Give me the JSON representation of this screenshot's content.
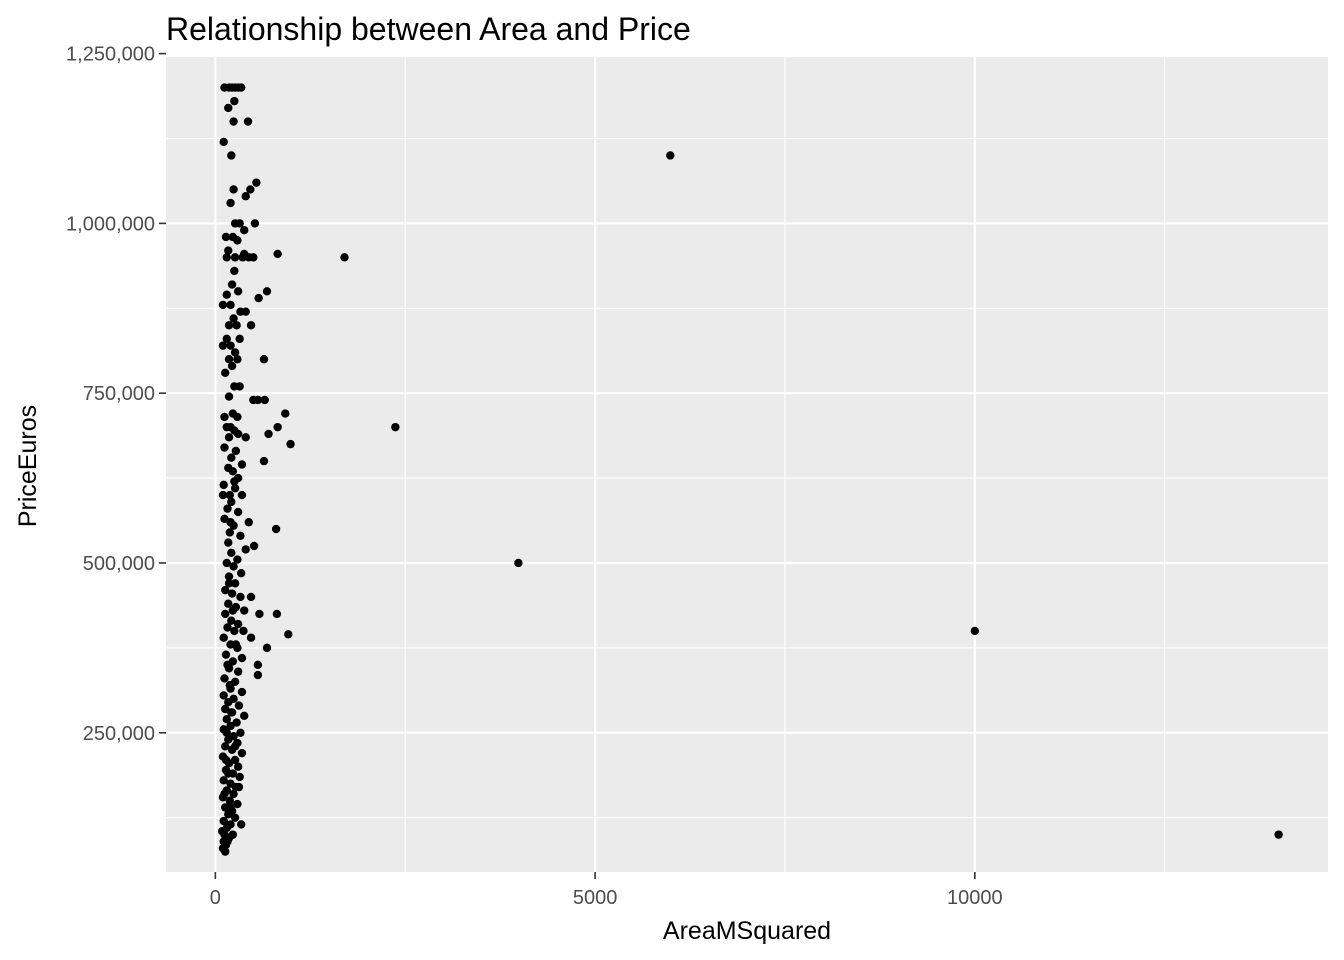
{
  "chart_data": {
    "type": "scatter",
    "title": "Relationship between Area and Price",
    "xlabel": "AreaMSquared",
    "ylabel": "PriceEuros",
    "xlim": [
      -650,
      14650
    ],
    "ylim": [
      45000,
      1245000
    ],
    "x_ticks": [
      0,
      5000,
      10000
    ],
    "x_tick_labels": [
      "0",
      "5000",
      "10000"
    ],
    "x_minor_ticks": [
      2500,
      7500,
      12500
    ],
    "y_ticks": [
      250000,
      500000,
      750000,
      1000000,
      1250000
    ],
    "y_tick_labels": [
      "250,000",
      "500,000",
      "750,000",
      "1,000,000",
      "1,250,000"
    ],
    "y_minor_ticks": [
      125000,
      375000,
      625000,
      875000,
      1125000
    ],
    "grid": true,
    "colors": {
      "panel": "#ebebeb",
      "grid": "#ffffff",
      "point": "#000000",
      "tick": "#333333"
    },
    "points": [
      [
        120,
        1200000
      ],
      [
        180,
        1200000
      ],
      [
        220,
        1200000
      ],
      [
        260,
        1200000
      ],
      [
        300,
        1200000
      ],
      [
        340,
        1200000
      ],
      [
        250,
        1180000
      ],
      [
        170,
        1170000
      ],
      [
        240,
        1150000
      ],
      [
        430,
        1150000
      ],
      [
        110,
        1120000
      ],
      [
        210,
        1100000
      ],
      [
        5990,
        1100000
      ],
      [
        540,
        1060000
      ],
      [
        460,
        1050000
      ],
      [
        240,
        1050000
      ],
      [
        400,
        1040000
      ],
      [
        200,
        1030000
      ],
      [
        260,
        1000000
      ],
      [
        320,
        1000000
      ],
      [
        520,
        1000000
      ],
      [
        380,
        990000
      ],
      [
        140,
        980000
      ],
      [
        230,
        980000
      ],
      [
        290,
        975000
      ],
      [
        170,
        960000
      ],
      [
        260,
        950000
      ],
      [
        360,
        950000
      ],
      [
        440,
        950000
      ],
      [
        150,
        950000
      ],
      [
        820,
        955000
      ],
      [
        1700,
        950000
      ],
      [
        380,
        955000
      ],
      [
        500,
        950000
      ],
      [
        250,
        930000
      ],
      [
        220,
        910000
      ],
      [
        300,
        900000
      ],
      [
        680,
        900000
      ],
      [
        150,
        895000
      ],
      [
        570,
        890000
      ],
      [
        200,
        880000
      ],
      [
        100,
        880000
      ],
      [
        330,
        870000
      ],
      [
        400,
        870000
      ],
      [
        240,
        860000
      ],
      [
        180,
        850000
      ],
      [
        280,
        850000
      ],
      [
        470,
        850000
      ],
      [
        150,
        830000
      ],
      [
        320,
        830000
      ],
      [
        200,
        820000
      ],
      [
        100,
        820000
      ],
      [
        260,
        810000
      ],
      [
        640,
        800000
      ],
      [
        180,
        800000
      ],
      [
        290,
        800000
      ],
      [
        220,
        790000
      ],
      [
        130,
        780000
      ],
      [
        250,
        760000
      ],
      [
        320,
        760000
      ],
      [
        180,
        745000
      ],
      [
        500,
        740000
      ],
      [
        560,
        740000
      ],
      [
        650,
        740000
      ],
      [
        230,
        720000
      ],
      [
        920,
        720000
      ],
      [
        120,
        715000
      ],
      [
        290,
        715000
      ],
      [
        820,
        700000
      ],
      [
        2370,
        700000
      ],
      [
        150,
        700000
      ],
      [
        200,
        700000
      ],
      [
        250,
        695000
      ],
      [
        300,
        690000
      ],
      [
        700,
        690000
      ],
      [
        180,
        685000
      ],
      [
        400,
        685000
      ],
      [
        990,
        675000
      ],
      [
        120,
        670000
      ],
      [
        270,
        665000
      ],
      [
        210,
        655000
      ],
      [
        640,
        650000
      ],
      [
        350,
        645000
      ],
      [
        170,
        640000
      ],
      [
        230,
        635000
      ],
      [
        300,
        625000
      ],
      [
        110,
        615000
      ],
      [
        260,
        610000
      ],
      [
        190,
        600000
      ],
      [
        350,
        600000
      ],
      [
        100,
        600000
      ],
      [
        210,
        590000
      ],
      [
        160,
        580000
      ],
      [
        300,
        575000
      ],
      [
        120,
        565000
      ],
      [
        440,
        560000
      ],
      [
        240,
        555000
      ],
      [
        800,
        550000
      ],
      [
        190,
        545000
      ],
      [
        330,
        540000
      ],
      [
        170,
        530000
      ],
      [
        510,
        525000
      ],
      [
        400,
        520000
      ],
      [
        210,
        515000
      ],
      [
        290,
        505000
      ],
      [
        3990,
        500000
      ],
      [
        150,
        500000
      ],
      [
        240,
        495000
      ],
      [
        340,
        485000
      ],
      [
        180,
        480000
      ],
      [
        260,
        470000
      ],
      [
        130,
        460000
      ],
      [
        220,
        455000
      ],
      [
        330,
        450000
      ],
      [
        470,
        450000
      ],
      [
        170,
        440000
      ],
      [
        270,
        435000
      ],
      [
        380,
        430000
      ],
      [
        130,
        425000
      ],
      [
        580,
        425000
      ],
      [
        810,
        425000
      ],
      [
        210,
        415000
      ],
      [
        300,
        410000
      ],
      [
        160,
        405000
      ],
      [
        250,
        400000
      ],
      [
        370,
        400000
      ],
      [
        960,
        395000
      ],
      [
        110,
        390000
      ],
      [
        470,
        390000
      ],
      [
        200,
        380000
      ],
      [
        680,
        375000
      ],
      [
        290,
        375000
      ],
      [
        140,
        365000
      ],
      [
        350,
        360000
      ],
      [
        230,
        355000
      ],
      [
        560,
        350000
      ],
      [
        180,
        345000
      ],
      [
        300,
        340000
      ],
      [
        560,
        335000
      ],
      [
        120,
        330000
      ],
      [
        260,
        325000
      ],
      [
        200,
        315000
      ],
      [
        350,
        310000
      ],
      [
        110,
        305000
      ],
      [
        240,
        300000
      ],
      [
        170,
        295000
      ],
      [
        310,
        290000
      ],
      [
        130,
        285000
      ],
      [
        220,
        280000
      ],
      [
        380,
        275000
      ],
      [
        150,
        270000
      ],
      [
        280,
        265000
      ],
      [
        200,
        260000
      ],
      [
        110,
        255000
      ],
      [
        330,
        250000
      ],
      [
        240,
        245000
      ],
      [
        170,
        240000
      ],
      [
        290,
        235000
      ],
      [
        130,
        230000
      ],
      [
        220,
        225000
      ],
      [
        350,
        220000
      ],
      [
        100,
        215000
      ],
      [
        260,
        210000
      ],
      [
        180,
        205000
      ],
      [
        300,
        200000
      ],
      [
        140,
        195000
      ],
      [
        230,
        190000
      ],
      [
        320,
        185000
      ],
      [
        110,
        180000
      ],
      [
        200,
        175000
      ],
      [
        270,
        170000
      ],
      [
        150,
        165000
      ],
      [
        240,
        160000
      ],
      [
        100,
        155000
      ],
      [
        190,
        150000
      ],
      [
        290,
        145000
      ],
      [
        130,
        140000
      ],
      [
        220,
        135000
      ],
      [
        170,
        130000
      ],
      [
        260,
        125000
      ],
      [
        110,
        120000
      ],
      [
        200,
        115000
      ],
      [
        340,
        115000
      ],
      [
        150,
        110000
      ],
      [
        90,
        105000
      ],
      [
        120,
        100000
      ],
      [
        180,
        95000
      ],
      [
        110,
        90000
      ],
      [
        140,
        85000
      ],
      [
        100,
        80000
      ],
      [
        130,
        75000
      ],
      [
        14000,
        100000
      ],
      [
        10000,
        400000
      ],
      [
        250,
        620000
      ],
      [
        200,
        560000
      ],
      [
        180,
        470000
      ],
      [
        230,
        430000
      ],
      [
        160,
        350000
      ],
      [
        270,
        380000
      ],
      [
        190,
        320000
      ],
      [
        150,
        250000
      ],
      [
        210,
        280000
      ],
      [
        140,
        210000
      ],
      [
        260,
        230000
      ],
      [
        170,
        190000
      ],
      [
        200,
        140000
      ],
      [
        120,
        160000
      ],
      [
        310,
        170000
      ],
      [
        230,
        100000
      ],
      [
        160,
        90000
      ]
    ]
  }
}
